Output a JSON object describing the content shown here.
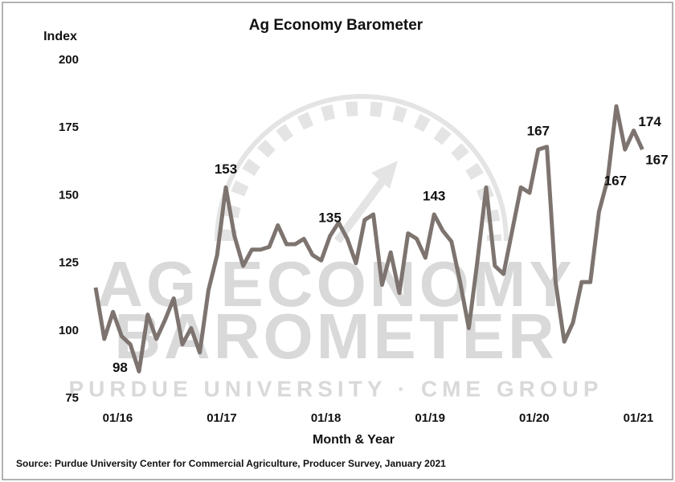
{
  "chart_data": {
    "type": "line",
    "title": "Ag Economy Barometer",
    "y_label": "Index",
    "x_label": "Month & Year",
    "source": "Source: Purdue University Center for Commercial Agriculture, Producer Survey, January 2021",
    "watermark": [
      "AG ECONOMY",
      "BAROMETER",
      "PURDUE UNIVERSITY · CME GROUP"
    ],
    "categories": [
      null,
      null,
      null,
      "01/16",
      null,
      null,
      null,
      null,
      null,
      null,
      null,
      null,
      null,
      null,
      null,
      "01/17",
      null,
      null,
      null,
      null,
      null,
      null,
      null,
      null,
      null,
      null,
      null,
      "01/18",
      null,
      null,
      null,
      null,
      null,
      null,
      null,
      null,
      null,
      null,
      null,
      "01/19",
      null,
      null,
      null,
      null,
      null,
      null,
      null,
      null,
      null,
      null,
      null,
      "01/20",
      null,
      null,
      null,
      null,
      null,
      null,
      null,
      null,
      null,
      null,
      null,
      "01/21"
    ],
    "series": [
      {
        "name": "Index",
        "color": "#7d7470",
        "values": [
          116,
          97,
          107,
          98,
          95,
          85,
          106,
          97,
          104,
          112,
          95,
          101,
          92,
          115,
          128,
          153,
          135,
          124,
          130,
          130,
          131,
          139,
          132,
          132,
          134,
          128,
          126,
          135,
          140,
          134,
          125,
          141,
          143,
          117,
          129,
          114,
          136,
          134,
          127,
          143,
          137,
          133,
          118,
          101,
          126,
          153,
          124,
          121,
          137,
          153,
          151,
          167,
          168,
          118,
          96,
          103,
          118,
          118,
          144,
          156,
          183,
          167,
          174,
          167
        ],
        "value_labels": [
          null,
          null,
          null,
          "98",
          null,
          null,
          null,
          null,
          null,
          null,
          null,
          null,
          null,
          null,
          null,
          "153",
          null,
          null,
          null,
          null,
          null,
          null,
          null,
          null,
          null,
          null,
          null,
          "135",
          null,
          null,
          null,
          null,
          null,
          null,
          null,
          null,
          null,
          null,
          null,
          "143",
          null,
          null,
          null,
          null,
          null,
          null,
          null,
          null,
          null,
          null,
          null,
          "167",
          null,
          null,
          null,
          null,
          null,
          null,
          null,
          null,
          null,
          "167",
          "174",
          "167"
        ]
      }
    ],
    "ylim": [
      75,
      200
    ],
    "yticks": [
      75,
      100,
      125,
      150,
      175,
      200
    ],
    "grid": false
  }
}
